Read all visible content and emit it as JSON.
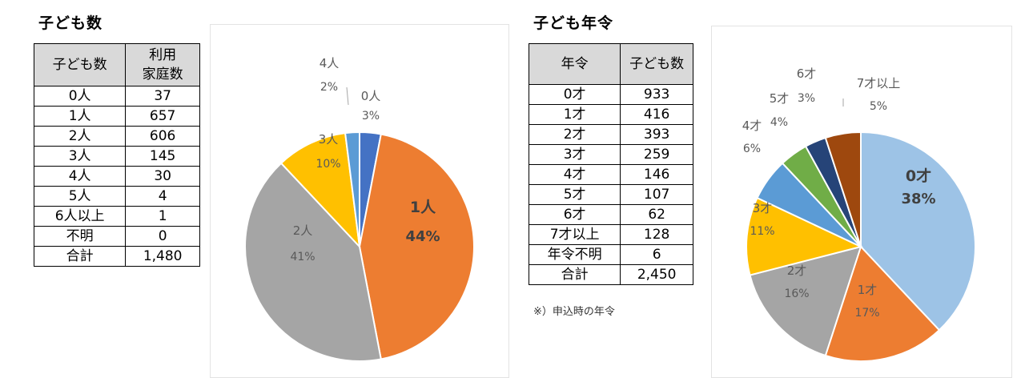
{
  "section1": {
    "title": "子ども数",
    "table": {
      "headers": [
        "子ども数",
        "利用",
        "家庭数"
      ],
      "rows": [
        [
          "0人",
          "37"
        ],
        [
          "1人",
          "657"
        ],
        [
          "2人",
          "606"
        ],
        [
          "3人",
          "145"
        ],
        [
          "4人",
          "30"
        ],
        [
          "5人",
          "4"
        ],
        [
          "6人以上",
          "1"
        ],
        [
          "不明",
          "0"
        ],
        [
          "合計",
          "1,480"
        ]
      ]
    }
  },
  "section2": {
    "title": "子ども年令",
    "table": {
      "headers": [
        "年令",
        "子ども数"
      ],
      "rows": [
        [
          "0才",
          "933"
        ],
        [
          "1才",
          "416"
        ],
        [
          "2才",
          "393"
        ],
        [
          "3才",
          "259"
        ],
        [
          "4才",
          "146"
        ],
        [
          "5才",
          "107"
        ],
        [
          "6才",
          "62"
        ],
        [
          "7才以上",
          "128"
        ],
        [
          "年令不明",
          "6"
        ],
        [
          "合計",
          "2,450"
        ]
      ]
    },
    "note": "※）申込時の年令"
  },
  "chart_data": [
    {
      "type": "pie",
      "title": "",
      "categories": [
        "0人",
        "1人",
        "2人",
        "3人",
        "4人"
      ],
      "values": [
        3,
        44,
        41,
        10,
        2
      ],
      "value_labels": [
        "3%",
        "44%",
        "41%",
        "10%",
        "2%"
      ],
      "colors": [
        "#4472c4",
        "#ed7d31",
        "#a5a5a5",
        "#ffc000",
        "#5b9bd5"
      ]
    },
    {
      "type": "pie",
      "title": "",
      "categories": [
        "0才",
        "1才",
        "2才",
        "3才",
        "4才",
        "5才",
        "6才",
        "7才以上"
      ],
      "values": [
        38,
        17,
        16,
        11,
        6,
        4,
        3,
        5
      ],
      "value_labels": [
        "38%",
        "17%",
        "16%",
        "11%",
        "6%",
        "4%",
        "3%",
        "5%"
      ],
      "colors": [
        "#9dc3e6",
        "#ed7d31",
        "#a5a5a5",
        "#ffc000",
        "#5b9bd5",
        "#70ad47",
        "#264478",
        "#9e480e"
      ]
    }
  ]
}
